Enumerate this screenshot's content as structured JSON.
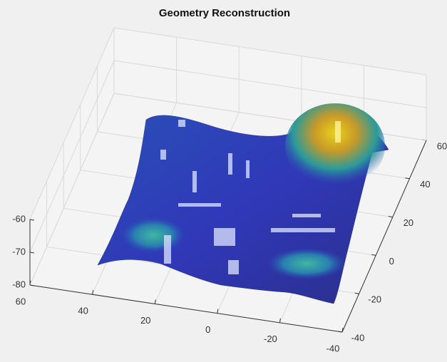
{
  "chart_data": {
    "type": "surface",
    "title": "Geometry Reconstruction",
    "xlim": [
      -40,
      60
    ],
    "xticks": [
      -40,
      -20,
      0,
      20,
      40,
      60
    ],
    "ylim": [
      -40,
      60
    ],
    "yticks": [
      -40,
      -20,
      0,
      20,
      40,
      60
    ],
    "zlim": [
      -80,
      -60
    ],
    "zticks": [
      -80,
      -70,
      -60
    ],
    "grid": true
  }
}
